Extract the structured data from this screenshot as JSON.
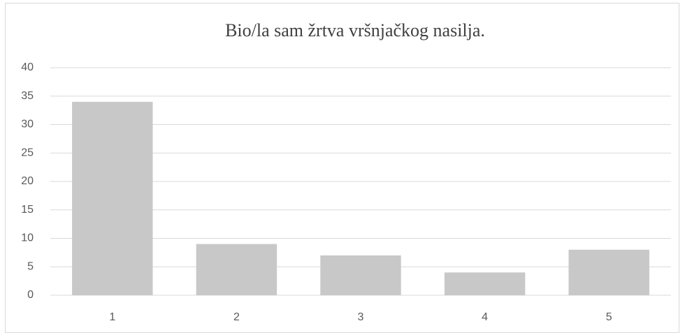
{
  "chart_data": {
    "type": "bar",
    "title": "Bio/la sam žrtva vršnjačkog nasilja.",
    "categories": [
      "1",
      "2",
      "3",
      "4",
      "5"
    ],
    "values": [
      34,
      9,
      7,
      4,
      8
    ],
    "color": "#c8c8c8",
    "ylim": [
      0,
      40
    ],
    "yticks": [
      0,
      5,
      10,
      15,
      20,
      25,
      30,
      35,
      40
    ],
    "grid": true
  }
}
